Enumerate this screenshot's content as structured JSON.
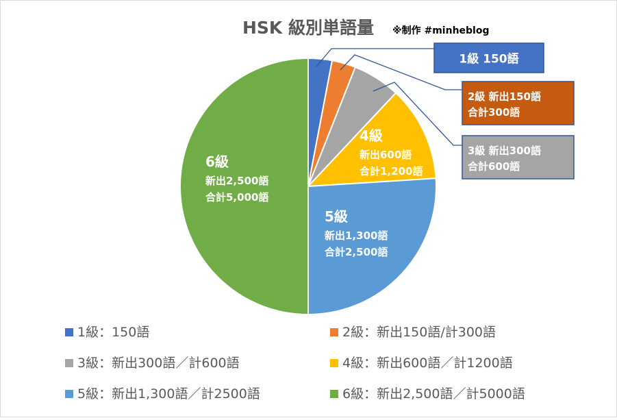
{
  "chart_data": {
    "type": "pie",
    "title": "HSK 級別単語量",
    "subtitle": "※制作 #minheblog",
    "total_unit": "語",
    "slices": [
      {
        "label": "1級",
        "value": 150,
        "color": "#4472C4",
        "label_lines": [
          "1級 150語"
        ],
        "legend": "1級：150語"
      },
      {
        "label": "2級",
        "value": 150,
        "color": "#ED7D31",
        "label_lines": [
          "2級 新出150語",
          "合計300語"
        ],
        "legend": "2級：新出150語/計300語"
      },
      {
        "label": "3級",
        "value": 300,
        "color": "#A5A5A5",
        "label_lines": [
          "3級 新出300語",
          "合計600語"
        ],
        "legend": "3級：新出300語／計600語"
      },
      {
        "label": "4級",
        "value": 600,
        "color": "#FFC000",
        "label_lines": [
          "4級",
          "新出600語",
          "合計1,200語"
        ],
        "legend": "4級：新出600語／計1200語"
      },
      {
        "label": "5級",
        "value": 1300,
        "color": "#5B9BD5",
        "label_lines": [
          "5級",
          "新出1,300語",
          "合計2,500語"
        ],
        "legend": "5級：新出1,300語／計2500語"
      },
      {
        "label": "6級",
        "value": 2500,
        "color": "#70AD47",
        "label_lines": [
          "6級",
          "新出2,500語",
          "合計5,000語"
        ],
        "legend": "6級：新出2,500語／計5000語"
      }
    ],
    "legend_placement": "bottom",
    "callout_colors": {
      "1級": "#4472C4",
      "2級": "#C55A11",
      "3級": "#A5A5A5"
    }
  }
}
